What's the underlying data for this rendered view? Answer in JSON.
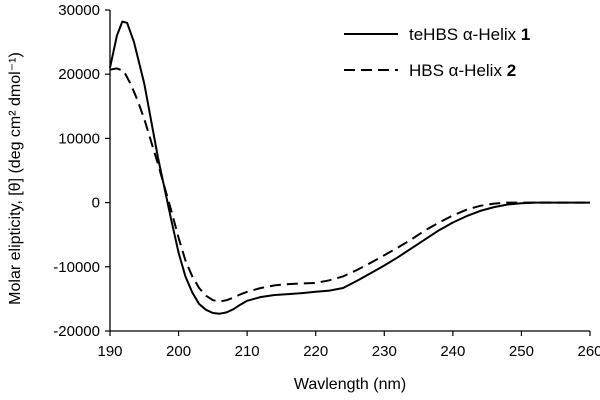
{
  "chart_data": {
    "type": "line",
    "xlabel": "Wavlength (nm)",
    "ylabel": "Molar elipticity, [θ] (deg cm² dmol⁻¹)",
    "xlim": [
      190,
      260
    ],
    "ylim": [
      -20000,
      30000
    ],
    "x_ticks": [
      190,
      200,
      210,
      220,
      230,
      240,
      250,
      260
    ],
    "y_ticks": [
      30000,
      20000,
      10000,
      0,
      -10000,
      -20000
    ],
    "x_tick_labels": [
      "190",
      "200",
      "210",
      "220",
      "230",
      "240",
      "250",
      "260"
    ],
    "y_tick_labels": [
      "30000",
      "20000",
      "10000",
      "0",
      "-10000",
      "-20000"
    ],
    "grid": false,
    "legend_position": "top-right",
    "series": [
      {
        "name": "teHBS α-Helix 1",
        "legend_text": "teHBS α-Helix ",
        "legend_bold": "1",
        "style": "solid",
        "color": "#000000",
        "x": [
          190,
          191,
          191.8,
          192.5,
          193.5,
          195,
          197,
          199,
          200,
          201,
          202,
          203,
          204,
          205,
          206,
          207,
          208,
          209,
          210,
          212,
          214,
          216,
          218,
          220,
          222,
          224,
          226,
          228,
          230,
          232,
          234,
          236,
          238,
          240,
          242,
          244,
          246,
          248,
          250,
          252,
          254,
          256,
          258,
          260
        ],
        "y": [
          21000,
          26000,
          28200,
          28000,
          25000,
          18500,
          7000,
          -3000,
          -7800,
          -11500,
          -14000,
          -15800,
          -16700,
          -17200,
          -17300,
          -17100,
          -16600,
          -15900,
          -15300,
          -14700,
          -14400,
          -14250,
          -14100,
          -13900,
          -13700,
          -13300,
          -12200,
          -11000,
          -9800,
          -8500,
          -7100,
          -5700,
          -4300,
          -3100,
          -2100,
          -1300,
          -700,
          -300,
          -100,
          0,
          0,
          0,
          0,
          0
        ]
      },
      {
        "name": "HBS α-Helix 2",
        "legend_text": "HBS α-Helix ",
        "legend_bold": "2",
        "style": "dashed",
        "color": "#000000",
        "x": [
          190,
          191,
          192,
          193,
          194,
          195,
          197,
          199,
          200,
          201,
          202,
          203,
          204,
          205,
          206,
          207,
          208,
          209,
          210,
          212,
          214,
          216,
          218,
          220,
          222,
          224,
          226,
          228,
          230,
          232,
          234,
          236,
          238,
          240,
          242,
          244,
          246,
          248,
          250,
          252,
          254,
          256,
          258,
          260
        ],
        "y": [
          20700,
          20900,
          20500,
          18500,
          16000,
          13000,
          6000,
          -1500,
          -5500,
          -9000,
          -11500,
          -13300,
          -14500,
          -15200,
          -15400,
          -15200,
          -14800,
          -14300,
          -13900,
          -13300,
          -12900,
          -12700,
          -12600,
          -12500,
          -12100,
          -11500,
          -10500,
          -9400,
          -8200,
          -7000,
          -5700,
          -4300,
          -3100,
          -2000,
          -1100,
          -500,
          -150,
          0,
          0,
          0,
          0,
          0,
          0,
          0
        ]
      }
    ]
  }
}
